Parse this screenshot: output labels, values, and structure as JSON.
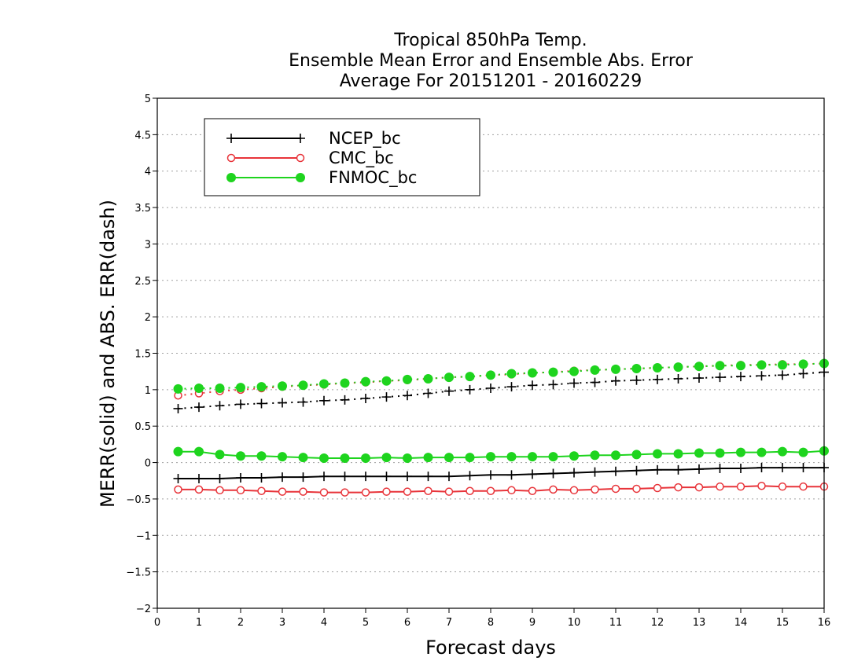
{
  "chart_data": {
    "type": "line",
    "title": [
      "Tropical 850hPa Temp.",
      "Ensemble Mean Error and Ensemble Abs. Error",
      "Average For 20151201 - 20160229"
    ],
    "xlabel": "Forecast days",
    "ylabel": "MERR(solid) and ABS. ERR(dash)",
    "xlim": [
      0,
      16
    ],
    "ylim": [
      -2,
      5
    ],
    "xticks": [
      "0",
      "1",
      "2",
      "3",
      "4",
      "5",
      "6",
      "7",
      "8",
      "9",
      "10",
      "11",
      "12",
      "13",
      "14",
      "15",
      "16"
    ],
    "yticks": [
      "5",
      "4.5",
      "4",
      "3.5",
      "3",
      "2.5",
      "2",
      "1.5",
      "1",
      "0.5",
      "0",
      "−0.5",
      "−1",
      "−1.5",
      "−2"
    ],
    "grid": "horizontal dotted",
    "legend_position": "top-left",
    "x": [
      0.5,
      1,
      1.5,
      2,
      2.5,
      3,
      3.5,
      4,
      4.5,
      5,
      5.5,
      6,
      6.5,
      7,
      7.5,
      8,
      8.5,
      9,
      9.5,
      10,
      10.5,
      11,
      11.5,
      12,
      12.5,
      13,
      13.5,
      14,
      14.5,
      15,
      15.5,
      16
    ],
    "series": [
      {
        "name": "NCEP_bc",
        "color": "#000000",
        "marker": "plus",
        "merr": [
          -0.22,
          -0.22,
          -0.22,
          -0.21,
          -0.21,
          -0.2,
          -0.2,
          -0.19,
          -0.19,
          -0.19,
          -0.19,
          -0.19,
          -0.19,
          -0.19,
          -0.18,
          -0.17,
          -0.17,
          -0.16,
          -0.15,
          -0.14,
          -0.13,
          -0.12,
          -0.11,
          -0.1,
          -0.1,
          -0.09,
          -0.08,
          -0.08,
          -0.07,
          -0.07,
          -0.07,
          -0.07
        ],
        "abs_err": [
          0.74,
          0.76,
          0.78,
          0.8,
          0.81,
          0.82,
          0.83,
          0.85,
          0.86,
          0.88,
          0.9,
          0.92,
          0.95,
          0.98,
          1.0,
          1.02,
          1.04,
          1.06,
          1.07,
          1.09,
          1.1,
          1.12,
          1.13,
          1.14,
          1.15,
          1.16,
          1.17,
          1.18,
          1.19,
          1.2,
          1.22,
          1.24
        ]
      },
      {
        "name": "CMC_bc",
        "color": "#e8343a",
        "marker": "open-circle",
        "merr": [
          -0.37,
          -0.37,
          -0.38,
          -0.38,
          -0.39,
          -0.4,
          -0.4,
          -0.41,
          -0.41,
          -0.41,
          -0.4,
          -0.4,
          -0.39,
          -0.4,
          -0.39,
          -0.39,
          -0.38,
          -0.39,
          -0.37,
          -0.38,
          -0.37,
          -0.36,
          -0.36,
          -0.35,
          -0.34,
          -0.34,
          -0.33,
          -0.33,
          -0.32,
          -0.33,
          -0.33,
          -0.33
        ],
        "abs_err": [
          0.92,
          0.95,
          0.98,
          1.0,
          1.02,
          1.04,
          1.06,
          1.07,
          1.09,
          1.1,
          1.12,
          1.13,
          1.15,
          1.17,
          1.18,
          1.2,
          1.21,
          1.23,
          1.24,
          1.26,
          1.27,
          1.28,
          1.29,
          1.3,
          1.31,
          1.32,
          1.33,
          1.34,
          1.34,
          1.35,
          1.35,
          1.36
        ]
      },
      {
        "name": "FNMOC_bc",
        "color": "#1ed41e",
        "marker": "filled-circle",
        "merr": [
          0.15,
          0.15,
          0.11,
          0.09,
          0.09,
          0.08,
          0.07,
          0.06,
          0.06,
          0.06,
          0.07,
          0.06,
          0.07,
          0.07,
          0.07,
          0.08,
          0.08,
          0.08,
          0.08,
          0.09,
          0.1,
          0.1,
          0.11,
          0.12,
          0.12,
          0.13,
          0.13,
          0.14,
          0.14,
          0.15,
          0.14,
          0.16
        ],
        "abs_err": [
          1.01,
          1.02,
          1.02,
          1.03,
          1.04,
          1.05,
          1.06,
          1.08,
          1.09,
          1.11,
          1.12,
          1.14,
          1.15,
          1.17,
          1.18,
          1.2,
          1.22,
          1.23,
          1.24,
          1.25,
          1.27,
          1.28,
          1.29,
          1.3,
          1.31,
          1.32,
          1.33,
          1.33,
          1.34,
          1.34,
          1.35,
          1.36
        ]
      }
    ]
  }
}
